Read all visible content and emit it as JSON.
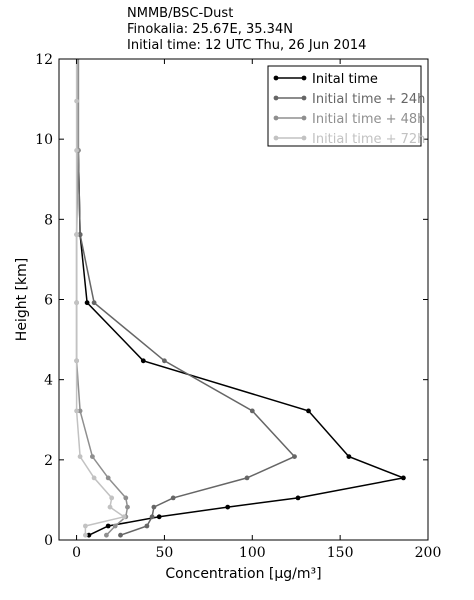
{
  "header": {
    "line1": "NMMB/BSC-Dust",
    "line2": "Finokalia: 25.67E, 35.34N",
    "line3": "Initial time: 12 UTC Thu, 26 Jun 2014"
  },
  "chart_data": {
    "type": "line",
    "xlabel": "Concentration [μg/m³]",
    "ylabel": "Height [km]",
    "xlim": [
      -10,
      200
    ],
    "ylim": [
      0,
      12
    ],
    "xticks": [
      0,
      50,
      100,
      150,
      200
    ],
    "yticks": [
      0,
      2,
      4,
      6,
      8,
      10,
      12
    ],
    "legend_position": "top-right",
    "grid": false,
    "series": [
      {
        "name": "Inital time",
        "color": "#000000",
        "points": [
          [
            7,
            0.12
          ],
          [
            18,
            0.35
          ],
          [
            47,
            0.58
          ],
          [
            86,
            0.82
          ],
          [
            126,
            1.05
          ],
          [
            186,
            1.55
          ],
          [
            155,
            2.08
          ],
          [
            132,
            3.22
          ],
          [
            38,
            4.47
          ],
          [
            6,
            5.92
          ],
          [
            2,
            7.62
          ],
          [
            1,
            9.72
          ],
          [
            1,
            12
          ]
        ]
      },
      {
        "name": "Initial time + 24h",
        "color": "#666666",
        "points": [
          [
            25,
            0.12
          ],
          [
            40,
            0.35
          ],
          [
            43,
            0.58
          ],
          [
            44,
            0.82
          ],
          [
            55,
            1.05
          ],
          [
            97,
            1.55
          ],
          [
            124,
            2.08
          ],
          [
            100,
            3.22
          ],
          [
            50,
            4.47
          ],
          [
            10,
            5.92
          ],
          [
            2,
            7.62
          ],
          [
            1,
            9.72
          ],
          [
            1,
            12
          ]
        ]
      },
      {
        "name": "Initial time + 48h",
        "color": "#8f8f8f",
        "points": [
          [
            17,
            0.12
          ],
          [
            22,
            0.35
          ],
          [
            28,
            0.58
          ],
          [
            29,
            0.82
          ],
          [
            28,
            1.05
          ],
          [
            18,
            1.55
          ],
          [
            9,
            2.08
          ],
          [
            2,
            3.22
          ],
          [
            0,
            4.47
          ],
          [
            0,
            5.92
          ],
          [
            0,
            7.62
          ],
          [
            1,
            9.72
          ],
          [
            1,
            12
          ]
        ]
      },
      {
        "name": "Initial time + 72h",
        "color": "#c2c2c2",
        "points": [
          [
            5,
            0.12
          ],
          [
            5,
            0.35
          ],
          [
            27,
            0.58
          ],
          [
            19,
            0.82
          ],
          [
            20,
            1.05
          ],
          [
            10,
            1.55
          ],
          [
            2,
            2.08
          ],
          [
            0,
            3.22
          ],
          [
            0,
            4.47
          ],
          [
            0,
            5.92
          ],
          [
            0,
            7.62
          ],
          [
            0,
            9.72
          ],
          [
            0,
            10.95
          ],
          [
            0,
            12
          ]
        ]
      }
    ]
  }
}
